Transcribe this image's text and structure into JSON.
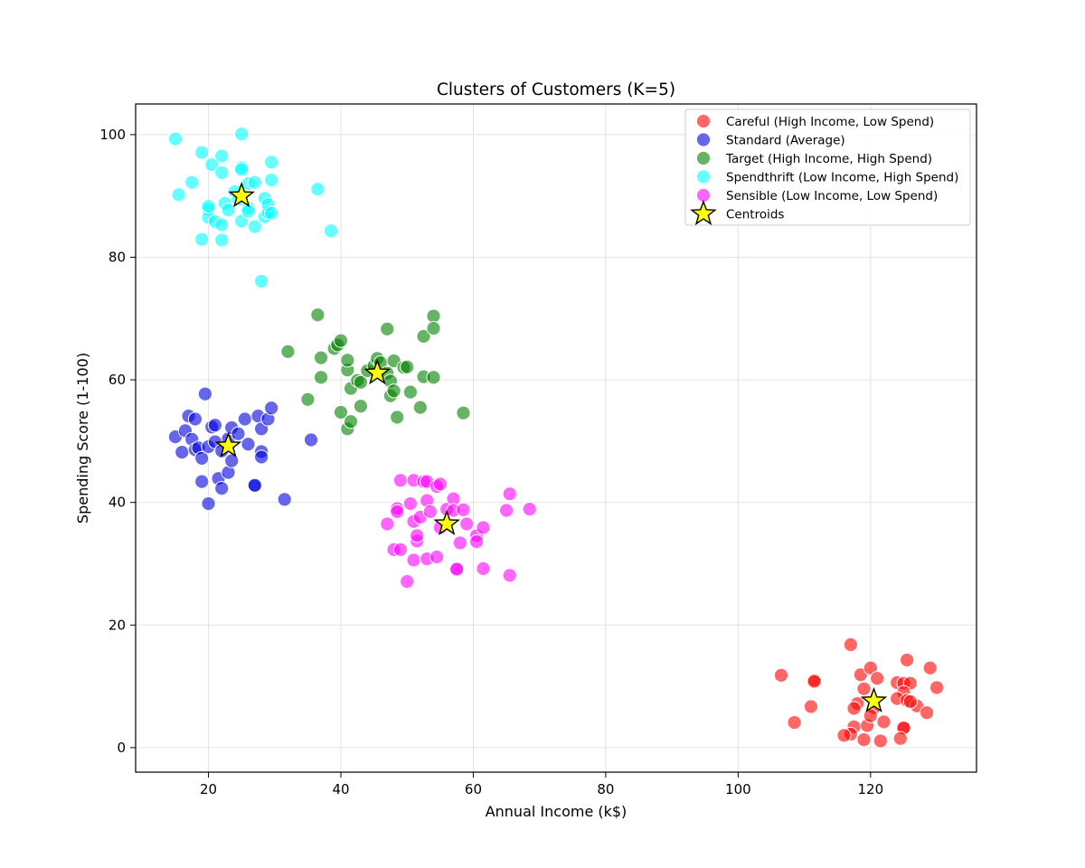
{
  "chart_data": {
    "type": "scatter",
    "title": "Clusters of Customers (K=5)",
    "xlabel": "Annual Income (k$)",
    "ylabel": "Spending Score (1-100)",
    "xlim": [
      9,
      136
    ],
    "ylim": [
      -4,
      105
    ],
    "xticks": [
      20,
      40,
      60,
      80,
      100,
      120
    ],
    "yticks": [
      0,
      20,
      40,
      60,
      80,
      100
    ],
    "grid": true,
    "legend_position": "upper right",
    "series": [
      {
        "name": "Careful (High Income, Low Spend)",
        "color": "#ff0000",
        "points": [
          [
            106.5,
            11.8
          ],
          [
            111.5,
            11.0
          ],
          [
            111.5,
            10.8
          ],
          [
            111,
            6.7
          ],
          [
            108.5,
            4.1
          ],
          [
            117,
            16.8
          ],
          [
            118.5,
            11.9
          ],
          [
            120,
            13.0
          ],
          [
            121,
            11.3
          ],
          [
            119,
            9.6
          ],
          [
            118,
            7.2
          ],
          [
            120.5,
            6.5
          ],
          [
            117.5,
            6.4
          ],
          [
            117.5,
            3.4
          ],
          [
            117,
            2.2
          ],
          [
            116,
            2.0
          ],
          [
            119,
            1.3
          ],
          [
            121.5,
            1.1
          ],
          [
            119.5,
            3.6
          ],
          [
            120,
            5.2
          ],
          [
            122,
            4.2
          ],
          [
            124,
            10.6
          ],
          [
            125,
            10.5
          ],
          [
            126,
            10.5
          ],
          [
            125.5,
            14.3
          ],
          [
            125,
            9.0
          ],
          [
            124,
            8.0
          ],
          [
            125.5,
            7.7
          ],
          [
            127,
            6.8
          ],
          [
            125,
            3.3
          ],
          [
            125,
            3.2
          ],
          [
            124.5,
            1.5
          ],
          [
            129,
            13.0
          ],
          [
            130,
            9.8
          ],
          [
            128.5,
            5.7
          ],
          [
            126,
            7.5
          ]
        ]
      },
      {
        "name": "Standard (Average)",
        "color": "#0000dd",
        "points": [
          [
            15,
            50.7
          ],
          [
            16,
            48.2
          ],
          [
            16.5,
            51.7
          ],
          [
            17,
            54.1
          ],
          [
            18,
            53.6
          ],
          [
            17.5,
            50.3
          ],
          [
            18,
            48.6
          ],
          [
            18.5,
            48.9
          ],
          [
            19,
            47.2
          ],
          [
            19,
            43.4
          ],
          [
            19.5,
            57.7
          ],
          [
            20,
            49.1
          ],
          [
            20,
            39.8
          ],
          [
            20.5,
            52.3
          ],
          [
            21,
            52.6
          ],
          [
            21,
            49.9
          ],
          [
            21.5,
            43.9
          ],
          [
            22,
            42.3
          ],
          [
            22,
            48.4
          ],
          [
            23,
            50.4
          ],
          [
            23,
            44.9
          ],
          [
            23.5,
            46.8
          ],
          [
            23.5,
            52.2
          ],
          [
            24.5,
            51.2
          ],
          [
            25.5,
            53.6
          ],
          [
            26,
            49.5
          ],
          [
            27,
            42.7
          ],
          [
            27,
            42.8
          ],
          [
            27.5,
            54.1
          ],
          [
            28,
            52.0
          ],
          [
            28,
            48.3
          ],
          [
            28,
            47.4
          ],
          [
            29,
            53.6
          ],
          [
            29.5,
            55.4
          ],
          [
            31.5,
            40.5
          ],
          [
            35.5,
            50.2
          ]
        ]
      },
      {
        "name": "Target (High Income, High Spend)",
        "color": "#008000",
        "points": [
          [
            32,
            64.6
          ],
          [
            35,
            56.8
          ],
          [
            36.5,
            70.6
          ],
          [
            37,
            60.4
          ],
          [
            37,
            63.6
          ],
          [
            39,
            65.1
          ],
          [
            39.5,
            65.7
          ],
          [
            40,
            66.4
          ],
          [
            40,
            54.7
          ],
          [
            41,
            61.6
          ],
          [
            41,
            63.2
          ],
          [
            41,
            52.0
          ],
          [
            41.5,
            53.2
          ],
          [
            41.5,
            58.6
          ],
          [
            42.5,
            59.9
          ],
          [
            43,
            55.7
          ],
          [
            43,
            59.6
          ],
          [
            44,
            61.5
          ],
          [
            45,
            62.3
          ],
          [
            45.5,
            63.5
          ],
          [
            46,
            62.8
          ],
          [
            47,
            68.3
          ],
          [
            47,
            61.1
          ],
          [
            47.5,
            59.8
          ],
          [
            47.5,
            57.4
          ],
          [
            48,
            58.2
          ],
          [
            48,
            63.1
          ],
          [
            48.5,
            53.9
          ],
          [
            49.5,
            62.0
          ],
          [
            50,
            62.1
          ],
          [
            50.5,
            58.0
          ],
          [
            52,
            55.5
          ],
          [
            52.5,
            60.5
          ],
          [
            52.5,
            67.1
          ],
          [
            54,
            70.4
          ],
          [
            54,
            68.4
          ],
          [
            54,
            60.4
          ],
          [
            58.5,
            54.6
          ]
        ]
      },
      {
        "name": "Spendthrift (Low Income, High Spend)",
        "color": "#00ffff",
        "points": [
          [
            15,
            99.3
          ],
          [
            15.5,
            90.2
          ],
          [
            17.5,
            92.2
          ],
          [
            19,
            97.1
          ],
          [
            19,
            82.9
          ],
          [
            20,
            87.8
          ],
          [
            20,
            86.5
          ],
          [
            20,
            88.3
          ],
          [
            20.5,
            95.1
          ],
          [
            21,
            85.8
          ],
          [
            22,
            96.5
          ],
          [
            22,
            93.8
          ],
          [
            22,
            82.8
          ],
          [
            22,
            85.3
          ],
          [
            22.5,
            88.8
          ],
          [
            23,
            87.7
          ],
          [
            24,
            90.7
          ],
          [
            24.5,
            89.5
          ],
          [
            25,
            100.1
          ],
          [
            25,
            94.6
          ],
          [
            25,
            94.3
          ],
          [
            25,
            85.9
          ],
          [
            26,
            92.0
          ],
          [
            26,
            88.0
          ],
          [
            26,
            87.5
          ],
          [
            27,
            85.0
          ],
          [
            27,
            92.2
          ],
          [
            28,
            76.1
          ],
          [
            28.5,
            89.6
          ],
          [
            28.5,
            86.6
          ],
          [
            29,
            87.3
          ],
          [
            29,
            88.6
          ],
          [
            29.5,
            95.5
          ],
          [
            29.5,
            92.6
          ],
          [
            29.5,
            87.2
          ],
          [
            36.5,
            91.1
          ],
          [
            38.5,
            84.3
          ]
        ]
      },
      {
        "name": "Sensible (Low Income, Low Spend)",
        "color": "#ff00ff",
        "points": [
          [
            47,
            36.5
          ],
          [
            48,
            32.3
          ],
          [
            48.5,
            39.0
          ],
          [
            48.5,
            38.5
          ],
          [
            49,
            43.6
          ],
          [
            49,
            32.3
          ],
          [
            50,
            27.1
          ],
          [
            50.5,
            39.8
          ],
          [
            51,
            43.6
          ],
          [
            51,
            36.9
          ],
          [
            51,
            30.6
          ],
          [
            51.5,
            33.7
          ],
          [
            51.5,
            34.6
          ],
          [
            52,
            37.6
          ],
          [
            52.5,
            43.4
          ],
          [
            53,
            43.4
          ],
          [
            53,
            40.3
          ],
          [
            53,
            30.8
          ],
          [
            53.5,
            38.5
          ],
          [
            54.5,
            31.1
          ],
          [
            54.5,
            42.6
          ],
          [
            55,
            43.0
          ],
          [
            55,
            35.9
          ],
          [
            56,
            38.9
          ],
          [
            57,
            40.6
          ],
          [
            57,
            38.7
          ],
          [
            57.5,
            29.2
          ],
          [
            57.5,
            29.1
          ],
          [
            58,
            33.4
          ],
          [
            58.5,
            38.8
          ],
          [
            59,
            36.5
          ],
          [
            60.5,
            34.6
          ],
          [
            60.5,
            33.6
          ],
          [
            61.5,
            35.9
          ],
          [
            61.5,
            29.2
          ],
          [
            65,
            38.7
          ],
          [
            65.5,
            41.4
          ],
          [
            65.5,
            28.1
          ],
          [
            68.5,
            38.9
          ]
        ]
      }
    ],
    "centroids": {
      "name": "Centroids",
      "color": "#ffff00",
      "edge_color": "#000000",
      "points": [
        [
          120.5,
          7.6
        ],
        [
          23,
          49.2
        ],
        [
          45.5,
          61.1
        ],
        [
          25,
          90.0
        ],
        [
          56,
          36.5
        ]
      ]
    }
  }
}
